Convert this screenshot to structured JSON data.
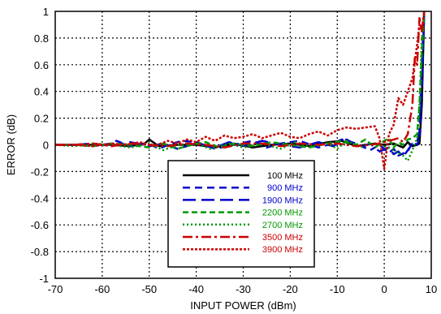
{
  "chart_data": {
    "type": "line",
    "title": "",
    "xlabel": "INPUT POWER (dBm)",
    "ylabel": "ERROR (dB)",
    "xlim": [
      -70,
      10
    ],
    "ylim": [
      -1,
      1
    ],
    "xticks": [
      "-70",
      "-60",
      "-50",
      "-40",
      "-30",
      "-20",
      "-10",
      "0",
      "10"
    ],
    "yticks": [
      "1",
      "0.8",
      "0.6",
      "0.4",
      "0.2",
      "0",
      "-0.2",
      "-0.4",
      "-0.6",
      "-0.8",
      "-1"
    ],
    "grid": true,
    "legend_position": "bottom-center",
    "series": [
      {
        "name": "100 MHz",
        "color": "#000000",
        "dash": "solid",
        "x": [
          -70,
          -66,
          -62,
          -58,
          -54,
          -51,
          -50,
          -48,
          -44,
          -40,
          -36,
          -32,
          -28,
          -24,
          -20,
          -16,
          -12,
          -9,
          -6,
          -2,
          0,
          2,
          4,
          5,
          6,
          7,
          7.5,
          8,
          8.5
        ],
        "y": [
          0,
          0,
          0,
          0,
          -0.01,
          0.01,
          0.04,
          -0.01,
          0,
          0,
          -0.02,
          0.01,
          -0.02,
          0,
          0.01,
          -0.01,
          0.02,
          0.03,
          -0.01,
          0.01,
          0,
          0.01,
          -0.02,
          0.02,
          -0.01,
          0,
          0.01,
          0.3,
          1.0
        ]
      },
      {
        "name": "900 MHz",
        "color": "#0000cc",
        "dash": "medium",
        "x": [
          -70,
          -66,
          -62,
          -58,
          -57,
          -54,
          -50,
          -48,
          -46,
          -43,
          -40,
          -36,
          -32,
          -28,
          -25,
          -22,
          -18,
          -14,
          -11,
          -9,
          -6,
          -3,
          -1,
          1,
          2,
          3,
          5,
          6,
          7,
          7.5,
          8,
          8.5
        ],
        "y": [
          0,
          0,
          -0.01,
          0.01,
          0.03,
          -0.01,
          0.01,
          -0.03,
          0,
          0.03,
          0.02,
          -0.03,
          0,
          0.03,
          -0.02,
          0.01,
          0.03,
          -0.02,
          0.01,
          0.04,
          0.01,
          -0.04,
          0,
          -0.06,
          -0.03,
          -0.08,
          -0.05,
          0.02,
          0,
          0.05,
          0.4,
          1.0
        ]
      },
      {
        "name": "1900 MHz",
        "color": "#0000cc",
        "dash": "long",
        "x": [
          -70,
          -66,
          -62,
          -58,
          -54,
          -50,
          -47,
          -44,
          -40,
          -36,
          -33,
          -30,
          -26,
          -22,
          -18,
          -14,
          -11,
          -8,
          -5,
          -3,
          -1,
          1,
          2,
          3,
          4,
          5,
          6,
          7,
          7.5,
          8,
          8.5
        ],
        "y": [
          0,
          0,
          0.01,
          -0.01,
          0.02,
          -0.01,
          0.01,
          -0.03,
          0.01,
          -0.02,
          0.02,
          -0.01,
          0.03,
          0,
          -0.02,
          0.02,
          -0.01,
          0.04,
          -0.02,
          0.01,
          -0.05,
          -0.02,
          -0.07,
          -0.05,
          -0.09,
          -0.04,
          0.01,
          0.02,
          0.1,
          0.6,
          1.0
        ]
      },
      {
        "name": "2200 MHz",
        "color": "#009900",
        "dash": "dashed",
        "x": [
          -70,
          -66,
          -62,
          -58,
          -54,
          -50,
          -47,
          -44,
          -41,
          -38,
          -35,
          -32,
          -28,
          -24,
          -20,
          -16,
          -12,
          -9,
          -6,
          -4,
          -2,
          0,
          1,
          2,
          3,
          4,
          5,
          6,
          7,
          7.5,
          8,
          8.5
        ],
        "y": [
          0,
          0,
          -0.01,
          0.01,
          0,
          -0.02,
          0.01,
          -0.03,
          0,
          0.02,
          -0.02,
          0.01,
          -0.01,
          0.02,
          0,
          -0.02,
          0.01,
          0.03,
          0,
          0.04,
          -0.02,
          0.03,
          0.05,
          -0.02,
          0.02,
          0,
          0.04,
          0.05,
          0.08,
          0.3,
          0.7,
          1.0
        ]
      },
      {
        "name": "2700 MHz",
        "color": "#009900",
        "dash": "dotted",
        "x": [
          -70,
          -66,
          -62,
          -58,
          -54,
          -50,
          -47,
          -44,
          -40,
          -37,
          -33,
          -30,
          -26,
          -22,
          -19,
          -16,
          -12,
          -10,
          -8,
          -5,
          -3,
          -1,
          1,
          3,
          4,
          5,
          6,
          7,
          7.5,
          8,
          8.5
        ],
        "y": [
          0,
          -0.01,
          0.01,
          0,
          -0.02,
          0.01,
          -0.04,
          0,
          0.01,
          -0.03,
          0.01,
          -0.02,
          0.01,
          -0.03,
          0.02,
          -0.01,
          0.01,
          -0.03,
          0.03,
          -0.02,
          0.01,
          0,
          -0.02,
          -0.06,
          -0.08,
          -0.12,
          -0.04,
          0.05,
          0.3,
          0.8,
          1.0
        ]
      },
      {
        "name": "3500 MHz",
        "color": "#cc0000",
        "dash": "dashdot",
        "x": [
          -70,
          -66,
          -62,
          -58,
          -54,
          -50,
          -46,
          -42,
          -38,
          -34,
          -30,
          -26,
          -22,
          -18,
          -14,
          -10,
          -6,
          -3,
          -1,
          1,
          3,
          4,
          5,
          6,
          6.5,
          7,
          7.5,
          8,
          8.5
        ],
        "y": [
          0,
          0,
          0.01,
          -0.01,
          0.01,
          0,
          -0.01,
          0.01,
          0,
          -0.02,
          0.01,
          0.01,
          -0.01,
          0.01,
          0,
          0.01,
          -0.01,
          0,
          0.01,
          0.03,
          0.05,
          0.02,
          0.08,
          0.3,
          0.65,
          0.6,
          0.95,
          0.85,
          1.0
        ]
      },
      {
        "name": "3900 MHz",
        "color": "#cc0000",
        "dash": "densedot",
        "x": [
          -70,
          -66,
          -62,
          -58,
          -55,
          -52,
          -49,
          -46,
          -44,
          -42,
          -40,
          -38,
          -36,
          -34,
          -32,
          -30,
          -28,
          -26,
          -24,
          -22,
          -20,
          -18,
          -16,
          -14,
          -12,
          -10,
          -8,
          -6,
          -4,
          -2,
          -1,
          0,
          1,
          2,
          3,
          4,
          5,
          6,
          7,
          7.5,
          8,
          8.5
        ],
        "y": [
          0,
          0,
          -0.01,
          0.01,
          0,
          0.02,
          -0.01,
          0.03,
          0.01,
          0.04,
          0.02,
          0.06,
          0.03,
          0.07,
          0.05,
          0.06,
          0.08,
          0.05,
          0.07,
          0.09,
          0.06,
          0.05,
          0.08,
          0.1,
          0.07,
          0.11,
          0.13,
          0.12,
          0.13,
          0.14,
          0.05,
          -0.18,
          0.08,
          0.15,
          0.35,
          0.3,
          0.4,
          0.5,
          0.75,
          0.9,
          0.85,
          1.0
        ]
      }
    ]
  }
}
